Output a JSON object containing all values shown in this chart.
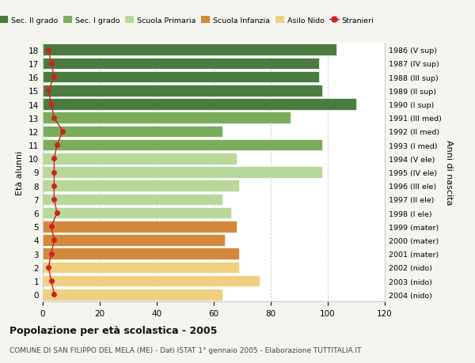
{
  "ages": [
    18,
    17,
    16,
    15,
    14,
    13,
    12,
    11,
    10,
    9,
    8,
    7,
    6,
    5,
    4,
    3,
    2,
    1,
    0
  ],
  "right_labels": [
    "1986 (V sup)",
    "1987 (IV sup)",
    "1988 (III sup)",
    "1989 (II sup)",
    "1990 (I sup)",
    "1991 (III med)",
    "1992 (II med)",
    "1993 (I med)",
    "1994 (V ele)",
    "1995 (IV ele)",
    "1996 (III ele)",
    "1997 (II ele)",
    "1998 (I ele)",
    "1999 (mater)",
    "2000 (mater)",
    "2001 (mater)",
    "2002 (nido)",
    "2003 (nido)",
    "2004 (nido)"
  ],
  "bar_values": [
    103,
    97,
    97,
    98,
    110,
    87,
    63,
    98,
    68,
    98,
    69,
    63,
    66,
    68,
    64,
    69,
    69,
    76,
    63
  ],
  "bar_colors": [
    "#4a7c3f",
    "#4a7c3f",
    "#4a7c3f",
    "#4a7c3f",
    "#4a7c3f",
    "#7aac5a",
    "#7aac5a",
    "#7aac5a",
    "#b8d89a",
    "#b8d89a",
    "#b8d89a",
    "#b8d89a",
    "#b8d89a",
    "#d4883a",
    "#d4883a",
    "#d4883a",
    "#f0d080",
    "#f0d080",
    "#f0d080"
  ],
  "stranieri_values": [
    2,
    3,
    4,
    2,
    3,
    4,
    7,
    5,
    4,
    4,
    4,
    4,
    5,
    3,
    4,
    3,
    2,
    3,
    4
  ],
  "legend_labels": [
    "Sec. II grado",
    "Sec. I grado",
    "Scuola Primaria",
    "Scuola Infanzia",
    "Asilo Nido",
    "Stranieri"
  ],
  "legend_colors": [
    "#4a7c3f",
    "#7aac5a",
    "#b8d89a",
    "#d4883a",
    "#f0d080",
    "#cc2222"
  ],
  "ylabel_left": "Età alunni",
  "ylabel_right": "Anni di nascita",
  "title": "Popolazione per età scolastica - 2005",
  "subtitle": "COMUNE DI SAN FILIPPO DEL MELA (ME) - Dati ISTAT 1° gennaio 2005 - Elaborazione TUTTITALIA.IT",
  "xlim": [
    0,
    120
  ],
  "xticks": [
    0,
    20,
    40,
    60,
    80,
    100,
    120
  ],
  "bg_color": "#f5f5f0",
  "plot_bg_color": "#ffffff",
  "grid_color": "#cccccc"
}
